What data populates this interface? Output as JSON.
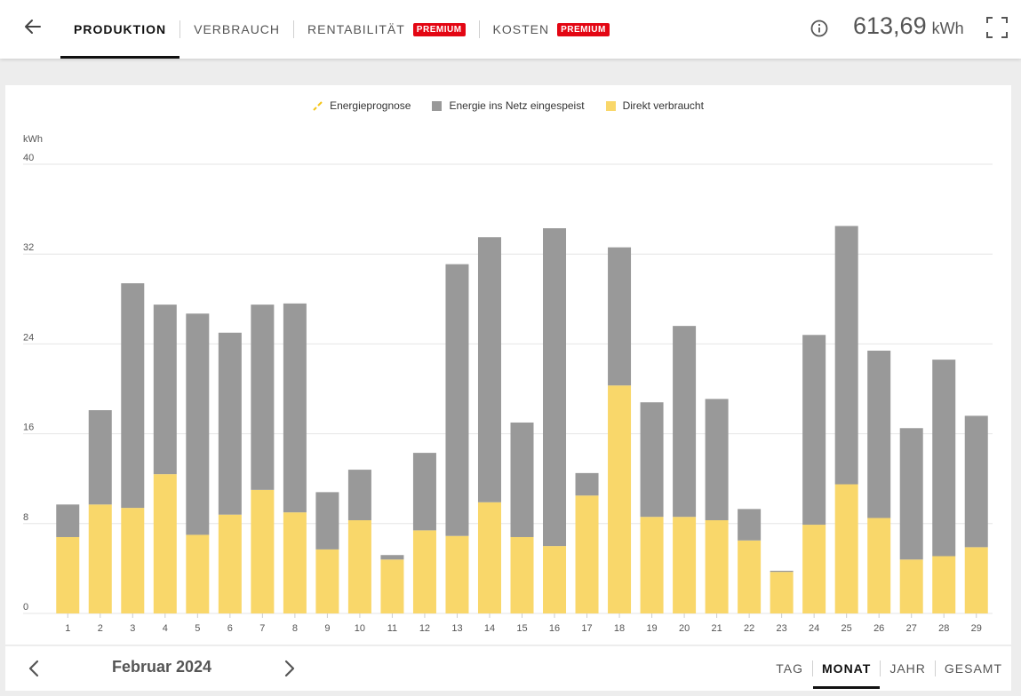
{
  "header": {
    "tabs": [
      {
        "label": "PRODUKTION",
        "active": true,
        "badge": ""
      },
      {
        "label": "VERBRAUCH",
        "active": false,
        "badge": ""
      },
      {
        "label": "RENTABILITÄT",
        "active": false,
        "badge": "PREMIUM"
      },
      {
        "label": "KOSTEN",
        "active": false,
        "badge": "PREMIUM"
      }
    ],
    "total_value": "613,69",
    "total_unit": "kWh",
    "icons": {
      "back": "arrow-left-icon",
      "info": "info-icon",
      "fullscreen": "fullscreen-icon"
    }
  },
  "colors": {
    "accent": "#111111",
    "premium": "#e30613",
    "grid_feed": "#999999",
    "direct": "#f9d76a",
    "forecast": "#f5c518"
  },
  "legend": [
    {
      "label": "Energieprognose",
      "color": "#f5c518",
      "style": "dashed"
    },
    {
      "label": "Energie ins Netz eingespeist",
      "color": "#999999",
      "style": "box"
    },
    {
      "label": "Direkt verbraucht",
      "color": "#f9d76a",
      "style": "box"
    }
  ],
  "chart_data": {
    "type": "bar",
    "stacked": true,
    "ylabel": "kWh",
    "ylim": [
      0,
      40
    ],
    "yticks": [
      0,
      8,
      16,
      24,
      32,
      40
    ],
    "categories": [
      "1",
      "2",
      "3",
      "4",
      "5",
      "6",
      "7",
      "8",
      "9",
      "10",
      "11",
      "12",
      "13",
      "14",
      "15",
      "16",
      "17",
      "18",
      "19",
      "20",
      "21",
      "22",
      "23",
      "24",
      "25",
      "26",
      "27",
      "28",
      "29"
    ],
    "series": [
      {
        "name": "Direkt verbraucht",
        "color": "#f9d76a",
        "values": [
          6.8,
          9.7,
          9.4,
          12.4,
          7.0,
          8.8,
          11.0,
          9.0,
          5.7,
          8.3,
          4.8,
          7.4,
          6.9,
          9.9,
          6.8,
          6.0,
          10.5,
          20.3,
          8.6,
          8.6,
          8.3,
          6.5,
          3.7,
          7.9,
          11.5,
          8.5,
          4.8,
          5.1,
          5.9
        ]
      },
      {
        "name": "Energie ins Netz eingespeist",
        "color": "#999999",
        "values": [
          2.9,
          8.4,
          20.0,
          15.1,
          19.7,
          16.2,
          16.5,
          18.6,
          5.1,
          4.5,
          0.4,
          6.9,
          24.2,
          23.6,
          10.2,
          28.3,
          2.0,
          12.3,
          10.2,
          17.0,
          10.8,
          2.8,
          0.1,
          16.9,
          23.0,
          14.9,
          11.7,
          17.5,
          11.7
        ]
      }
    ],
    "legend_position": "top-center",
    "grid": true
  },
  "footer": {
    "period": "Februar 2024",
    "ranges": [
      {
        "label": "TAG",
        "active": false
      },
      {
        "label": "MONAT",
        "active": true
      },
      {
        "label": "JAHR",
        "active": false
      },
      {
        "label": "GESAMT",
        "active": false
      }
    ],
    "icons": {
      "prev": "chevron-left-icon",
      "next": "chevron-right-icon"
    }
  }
}
